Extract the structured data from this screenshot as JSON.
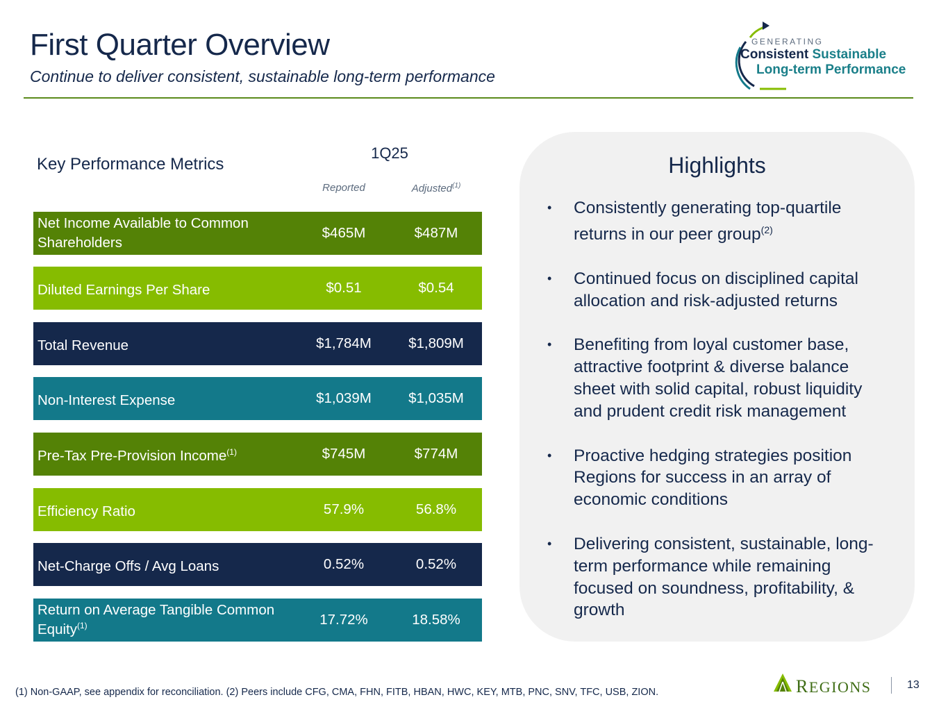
{
  "header": {
    "title": "First Quarter Overview",
    "subtitle": "Continue to deliver consistent, sustainable long-term performance"
  },
  "brand_badge": {
    "line1": "GENERATING",
    "line2a": "Consistent",
    "line2b": "Sustainable",
    "line3": "Long-term Performance"
  },
  "metrics": {
    "section_title": "Key Performance Metrics",
    "period": "1Q25",
    "col_reported": "Reported",
    "col_adjusted": "Adjusted",
    "col_adjusted_note": "(1)",
    "rows": [
      {
        "label": "Net Income Available to Common Shareholders",
        "note": "",
        "reported": "$465M",
        "adjusted": "$487M",
        "color": "#548206"
      },
      {
        "label": "Diluted Earnings Per Share",
        "note": "",
        "reported": "$0.51",
        "adjusted": "$0.54",
        "color": "#86bc00"
      },
      {
        "label": "Total Revenue",
        "note": "",
        "reported": "$1,784M",
        "adjusted": "$1,809M",
        "color": "#15284b"
      },
      {
        "label": "Non-Interest Expense",
        "note": "",
        "reported": "$1,039M",
        "adjusted": "$1,035M",
        "color": "#13798a"
      },
      {
        "label": "Pre-Tax Pre-Provision Income",
        "note": "(1)",
        "reported": "$745M",
        "adjusted": "$774M",
        "color": "#548206"
      },
      {
        "label": "Efficiency Ratio",
        "note": "",
        "reported": "57.9%",
        "adjusted": "56.8%",
        "color": "#86bc00"
      },
      {
        "label": "Net-Charge Offs / Avg Loans",
        "note": "",
        "reported": "0.52%",
        "adjusted": "0.52%",
        "color": "#15284b"
      },
      {
        "label": "Return on Average Tangible Common Equity",
        "note": "(1)",
        "reported": "17.72%",
        "adjusted": "18.58%",
        "color": "#13798a"
      }
    ]
  },
  "highlights": {
    "title": "Highlights",
    "items": [
      {
        "text": "Consistently generating top-quartile returns in our peer group",
        "note": "(2)"
      },
      {
        "text": "Continued focus on disciplined capital allocation and risk-adjusted returns",
        "note": ""
      },
      {
        "text": "Benefiting from loyal customer base, attractive footprint & diverse balance sheet with solid capital, robust liquidity and prudent credit risk management",
        "note": ""
      },
      {
        "text": "Proactive hedging strategies position Regions for success in an array of economic conditions",
        "note": ""
      },
      {
        "text": "Delivering consistent, sustainable, long-term performance while remaining focused on soundness, profitability, & growth",
        "note": ""
      }
    ]
  },
  "footer": {
    "footnote": "(1) Non-GAAP, see appendix for reconciliation. (2) Peers include CFG, CMA, FHN, FITB, HBAN, HWC, KEY, MTB, PNC, SNV, TFC, USB, ZION.",
    "brand_initial": "R",
    "brand_rest": "EGIONS",
    "page_number": "13"
  },
  "colors": {
    "navy": "#15284b",
    "green": "#548206",
    "lime": "#86bc00",
    "teal": "#13798a",
    "panel": "#f1f1f1"
  }
}
